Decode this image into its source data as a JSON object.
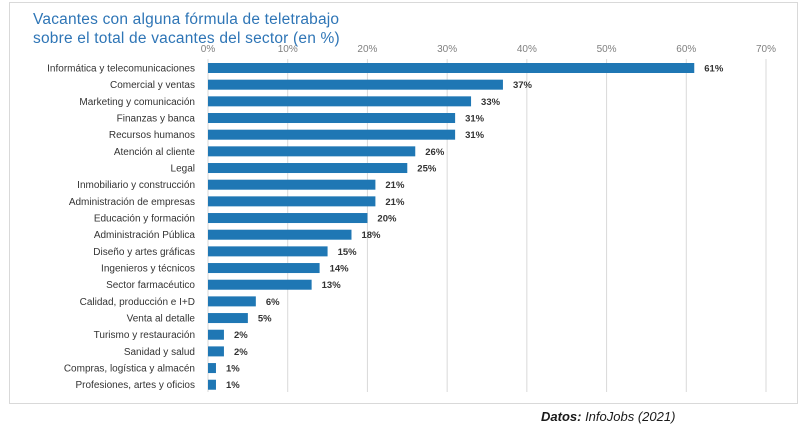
{
  "title_lines": [
    "Vacantes con alguna fórmula de teletrabajo",
    "sobre el total de vacantes del sector (en %)"
  ],
  "source": {
    "label": "Datos:",
    "text": " InfoJobs (2021)"
  },
  "colors": {
    "bar": "#1f77b4",
    "title": "#2e75b6",
    "grid": "#d9d9d9",
    "axis_text": "#808080"
  },
  "chart_data": {
    "type": "bar",
    "orientation": "horizontal",
    "categories": [
      "Informática y telecomunicaciones",
      "Comercial y ventas",
      "Marketing y comunicación",
      "Finanzas y banca",
      "Recursos humanos",
      "Atención al cliente",
      "Legal",
      "Inmobiliario y construcción",
      "Administración de empresas",
      "Educación y formación",
      "Administración Pública",
      "Diseño y artes gráficas",
      "Ingenieros y técnicos",
      "Sector farmacéutico",
      "Calidad, producción e I+D",
      "Venta al detalle",
      "Turismo y restauración",
      "Sanidad y salud",
      "Compras, logística y almacén",
      "Profesiones, artes y oficios"
    ],
    "values": [
      61,
      37,
      33,
      31,
      31,
      26,
      25,
      21,
      21,
      20,
      18,
      15,
      14,
      13,
      6,
      5,
      2,
      2,
      1,
      1
    ],
    "value_labels": [
      "61%",
      "37%",
      "33%",
      "31%",
      "31%",
      "26%",
      "25%",
      "21%",
      "21%",
      "20%",
      "18%",
      "15%",
      "14%",
      "13%",
      "6%",
      "5%",
      "2%",
      "2%",
      "1%",
      "1%"
    ],
    "xlim": [
      0,
      70
    ],
    "ticks": [
      0,
      10,
      20,
      30,
      40,
      50,
      60,
      70
    ],
    "tick_labels": [
      "0%",
      "10%",
      "20%",
      "30%",
      "40%",
      "50%",
      "60%",
      "70%"
    ],
    "axis_position": "top",
    "grid": true
  }
}
